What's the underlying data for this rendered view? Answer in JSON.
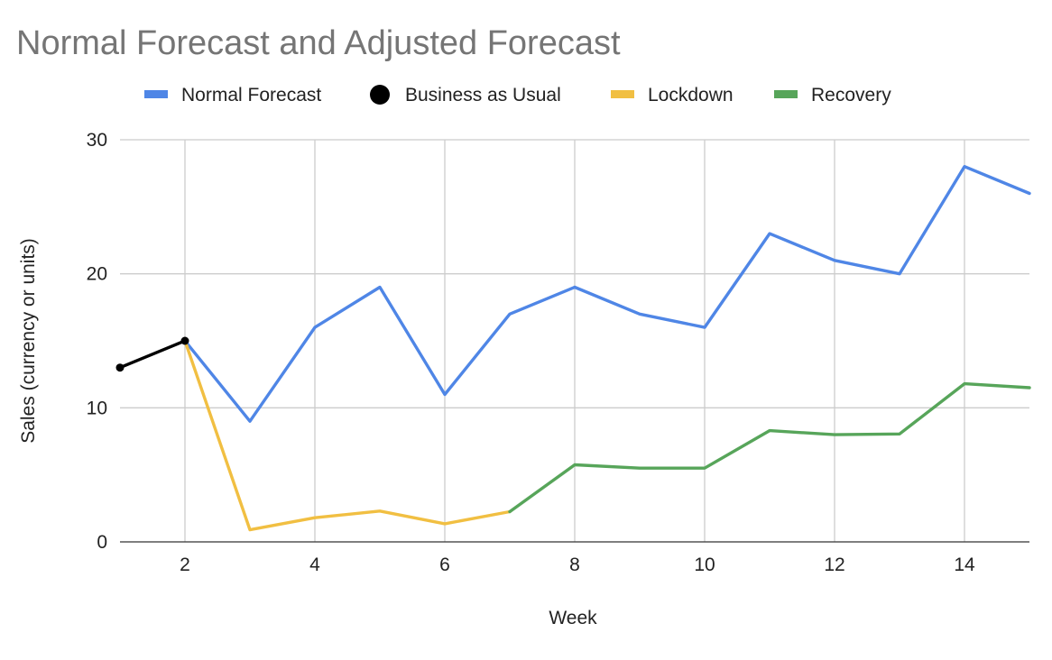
{
  "chart_data": {
    "type": "line",
    "title": "Normal Forecast and Adjusted Forecast",
    "xlabel": "Week",
    "ylabel": "Sales (currency or units)",
    "xlim": [
      1,
      15
    ],
    "ylim": [
      0,
      30
    ],
    "x_ticks": [
      2,
      4,
      6,
      8,
      10,
      12,
      14
    ],
    "y_ticks": [
      0,
      10,
      20,
      30
    ],
    "legend_position": "top",
    "series": [
      {
        "name": "Normal Forecast",
        "color": "#4f86e6",
        "marker": "line",
        "x": [
          2,
          3,
          4,
          5,
          6,
          7,
          8,
          9,
          10,
          11,
          12,
          13,
          14,
          15
        ],
        "values": [
          15,
          9,
          16,
          19,
          11,
          17,
          19,
          17,
          16,
          23,
          21,
          20,
          28,
          26
        ]
      },
      {
        "name": "Business as Usual",
        "color": "#000000",
        "marker": "circle",
        "x": [
          1,
          2
        ],
        "values": [
          13,
          15
        ]
      },
      {
        "name": "Lockdown",
        "color": "#f1bf42",
        "marker": "line",
        "x": [
          2,
          3,
          4,
          5,
          6,
          7
        ],
        "values": [
          15,
          0.9,
          1.8,
          2.3,
          1.35,
          2.25
        ]
      },
      {
        "name": "Recovery",
        "color": "#57a55a",
        "marker": "line",
        "x": [
          7,
          8,
          9,
          10,
          11,
          12,
          13,
          14,
          15
        ],
        "values": [
          2.25,
          5.75,
          5.5,
          5.5,
          8.3,
          8.0,
          8.05,
          11.8,
          11.5
        ]
      }
    ]
  }
}
